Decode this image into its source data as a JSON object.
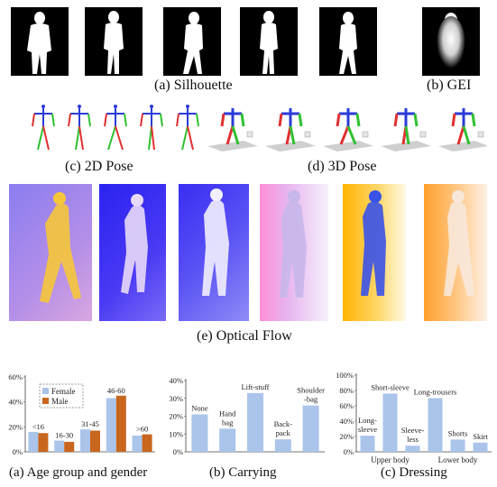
{
  "captions": {
    "silhouette": "(a) Silhouette",
    "gei": "(b) GEI",
    "pose2d": "(c) 2D Pose",
    "pose3d": "(d) 3D Pose",
    "flow": "(e) Optical Flow"
  },
  "flow_backgrounds": [
    "linear-gradient(135deg,#8b7df0 0%,#b48fe8 60%,#d9a7e0 100%)",
    "linear-gradient(135deg,#2a22f0 0%,#4a3af4 60%,#7a6cf6 100%)",
    "linear-gradient(135deg,#3a2df2 0%,#5a52f4 50%,#8f8cf6 100%)",
    "linear-gradient(90deg,#ff8fd6 0%,#e7b4f0 40%,#f6f1fb 100%)",
    "linear-gradient(90deg,#ffb400 0%,#ffd668 55%,#fffbe6 100%)",
    "linear-gradient(90deg,#ff9f2a 0%,#ffc98a 55%,#fff1e4 100%)"
  ],
  "flow_figures": [
    "#f6c63a",
    "#e8d9f8",
    "#f2efff",
    "#c8b7ea",
    "#3a52e8",
    "#f8e8da"
  ],
  "colors": {
    "female": "#aac4ea",
    "male": "#c8661e"
  },
  "chart_data": [
    {
      "type": "bar",
      "caption": "(a) Age group and gender",
      "categories": [
        "<16",
        "16-30",
        "31-45",
        "46-60",
        ">60"
      ],
      "series": [
        {
          "name": "Female",
          "values": [
            16,
            9,
            18,
            43,
            13
          ]
        },
        {
          "name": "Male",
          "values": [
            15,
            8,
            17,
            45,
            14
          ]
        }
      ],
      "ylim": [
        0,
        60
      ],
      "yticks": [
        "0%",
        "20%",
        "40%",
        "60%"
      ],
      "legend": "top-left"
    },
    {
      "type": "bar",
      "caption": "(b) Carrying",
      "categories": [
        "None",
        "Hand bag",
        "Lift-stuff",
        "Back -pack",
        "Shoulder -bag"
      ],
      "label_lines": [
        [
          "None"
        ],
        [
          "Hand",
          "bag"
        ],
        [
          "Lift-stuff"
        ],
        [
          "Back-",
          "pack"
        ],
        [
          "Shoulder",
          "-bag"
        ]
      ],
      "values": [
        21,
        13,
        33,
        7,
        26
      ],
      "ylim": [
        0,
        40
      ],
      "yticks": [
        "0%",
        "10%",
        "20%",
        "30%",
        "40%"
      ]
    },
    {
      "type": "bar",
      "caption": "(c) Dressing",
      "categories": [
        "Long-sleeve",
        "Short-sleeve",
        "Sleeve-less",
        "Long-trousers",
        "Shorts",
        "Skirt"
      ],
      "label_lines": [
        [
          "Long-",
          "sleeve"
        ],
        [
          "Short-sleeve"
        ],
        [
          "Sleeve-",
          "less"
        ],
        [
          "Long-trousers"
        ],
        [
          "Shorts"
        ],
        [
          "Skirt"
        ]
      ],
      "values": [
        21,
        76,
        8,
        70,
        16,
        12
      ],
      "ylim": [
        0,
        100
      ],
      "yticks": [
        "0%",
        "20%",
        "40%",
        "60%",
        "80%",
        "100%"
      ],
      "groups": [
        "Upper body",
        "Lower body"
      ]
    }
  ]
}
